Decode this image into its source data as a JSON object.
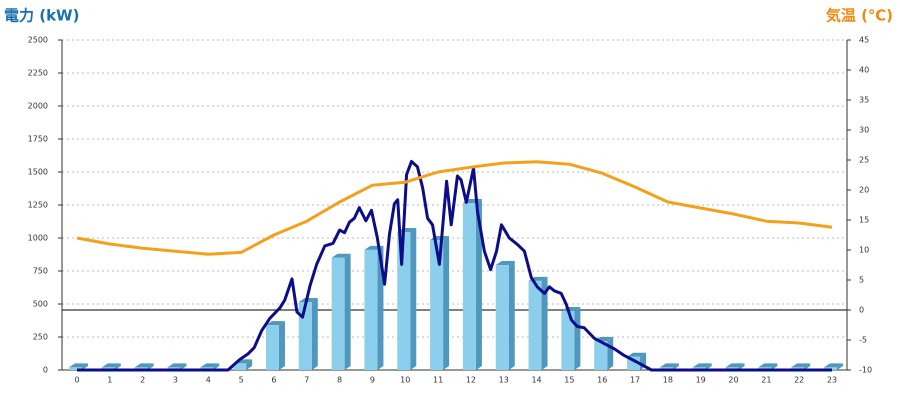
{
  "chart_data": {
    "type": "bar",
    "y_label": "電力 (kW)",
    "y_label_color": "#1a6fb0",
    "y2_label": "気温 (℃)",
    "y2_label_color": "#f08a10",
    "categories": [
      "0",
      "1",
      "2",
      "3",
      "4",
      "5",
      "6",
      "7",
      "8",
      "9",
      "10",
      "11",
      "12",
      "13",
      "14",
      "15",
      "16",
      "17",
      "18",
      "19",
      "20",
      "21",
      "22",
      "23"
    ],
    "ylim": [
      0,
      2500
    ],
    "yticks": [
      0,
      250,
      500,
      750,
      1000,
      1250,
      1500,
      1750,
      2000,
      2250,
      2500
    ],
    "y2lim": [
      -10,
      45
    ],
    "y2ticks": [
      -10,
      -5,
      0,
      5,
      10,
      15,
      20,
      25,
      30,
      35,
      40,
      45
    ],
    "grid": true,
    "series": [
      {
        "type": "bar",
        "color": "#8ccfec",
        "side_color": "#4f97bd",
        "values": [
          20,
          20,
          20,
          20,
          20,
          50,
          340,
          515,
          850,
          910,
          1045,
          985,
          1265,
          795,
          675,
          447,
          220,
          100,
          20,
          20,
          20,
          20,
          20,
          20
        ]
      },
      {
        "type": "line",
        "color": "#0d0d8a",
        "x": [
          0,
          4.6,
          4.96,
          5.2,
          5.4,
          5.63,
          5.87,
          6.18,
          6.33,
          6.55,
          6.7,
          6.87,
          7.1,
          7.3,
          7.55,
          7.8,
          8.0,
          8.15,
          8.3,
          8.45,
          8.6,
          8.8,
          8.97,
          9.15,
          9.37,
          9.52,
          9.67,
          9.77,
          9.89,
          10.04,
          10.19,
          10.37,
          10.53,
          10.68,
          10.83,
          11.04,
          11.26,
          11.4,
          11.59,
          11.7,
          11.86,
          12.08,
          12.2,
          12.41,
          12.6,
          12.78,
          12.93,
          13.17,
          13.42,
          13.63,
          13.84,
          14.02,
          14.24,
          14.39,
          14.54,
          14.75,
          14.9,
          15.06,
          15.24,
          15.45,
          15.76,
          16.06,
          16.37,
          16.67,
          16.98,
          17.28,
          17.5,
          23
        ],
        "values": [
          0,
          0,
          80,
          120,
          170,
          300,
          390,
          470,
          530,
          690,
          440,
          400,
          640,
          800,
          940,
          960,
          1060,
          1040,
          1120,
          1150,
          1230,
          1130,
          1210,
          1000,
          650,
          1030,
          1260,
          1290,
          800,
          1480,
          1580,
          1540,
          1380,
          1150,
          1100,
          800,
          1430,
          1100,
          1470,
          1440,
          1270,
          1530,
          1200,
          900,
          760,
          900,
          1100,
          1000,
          950,
          900,
          700,
          630,
          580,
          630,
          600,
          580,
          500,
          380,
          330,
          320,
          240,
          200,
          160,
          110,
          70,
          30,
          0,
          0
        ]
      },
      {
        "type": "line",
        "axis": "y2",
        "color": "#f5a01a",
        "values": [
          12,
          11,
          10.3,
          9.8,
          9.3,
          9.6,
          12.5,
          14.8,
          18,
          20.8,
          21.3,
          23,
          23.8,
          24.5,
          24.7,
          24.3,
          22.8,
          20.5,
          18,
          17,
          16,
          14.8,
          14.5,
          13.8
        ]
      }
    ]
  }
}
